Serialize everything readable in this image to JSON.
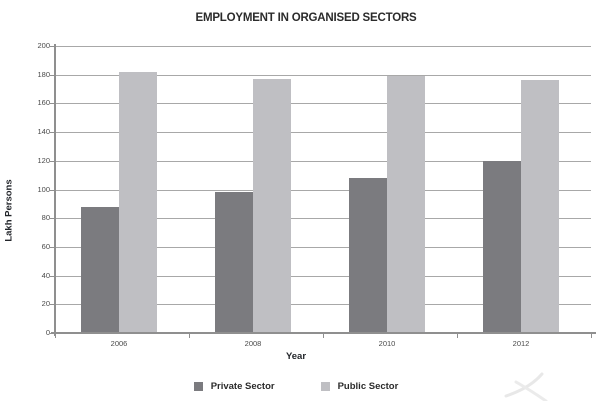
{
  "chart_data": {
    "type": "bar",
    "title": "EMPLOYMENT IN ORGANISED SECTORS",
    "categories": [
      "2006",
      "2008",
      "2010",
      "2012"
    ],
    "series": [
      {
        "name": "Private Sector",
        "color": "#7b7b7f",
        "values": [
          88,
          98,
          108,
          120
        ]
      },
      {
        "name": "Public Sector",
        "color": "#bfbfc3",
        "values": [
          182,
          177,
          179,
          176
        ]
      }
    ],
    "xlabel": "Year",
    "ylabel": "Lakh Persons",
    "ylim": [
      0,
      200
    ],
    "ytick_step": 20,
    "grid": true,
    "legend_position": "bottom",
    "grid_color": "#a8a8a8",
    "axis_color": "#8f8f8f"
  }
}
